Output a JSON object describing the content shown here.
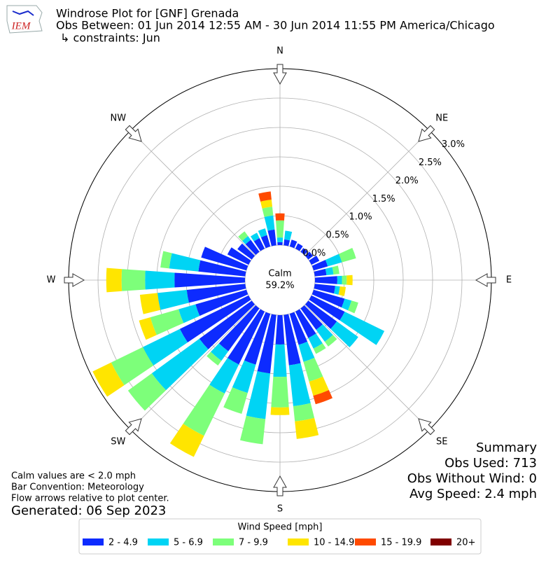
{
  "chart_data": {
    "type": "windrose",
    "title": "Windrose Plot for [GNF] Grenada",
    "subtitle": "Obs Between: 01 Jun 2014 12:55 AM - 30 Jun 2014 11:55 PM America/Chicago",
    "constraints": "↳ constraints: Jun",
    "logo_text": "IEM",
    "calm_label": "Calm",
    "calm_text": "59.2%",
    "x": [
      0,
      10,
      20,
      30,
      40,
      50,
      60,
      70,
      80,
      90,
      100,
      110,
      120,
      130,
      140,
      150,
      160,
      170,
      180,
      190,
      200,
      210,
      220,
      230,
      240,
      250,
      260,
      270,
      280,
      290,
      300,
      310,
      320,
      330,
      340,
      350
    ],
    "xticks": [
      {
        "value": 0,
        "label": "N"
      },
      {
        "value": 45,
        "label": "NE"
      },
      {
        "value": 90,
        "label": "E"
      },
      {
        "value": 135,
        "label": "SE"
      },
      {
        "value": 180,
        "label": "S"
      },
      {
        "value": 225,
        "label": "SW"
      },
      {
        "value": 270,
        "label": "W"
      },
      {
        "value": 315,
        "label": "NW"
      }
    ],
    "ylim": [
      0,
      3.0
    ],
    "yticks": [
      {
        "value": 0,
        "label": "0.0%"
      },
      {
        "value": 0.5,
        "label": "0.5%"
      },
      {
        "value": 1.0,
        "label": "1.0%"
      },
      {
        "value": 1.5,
        "label": "1.5%"
      },
      {
        "value": 2.0,
        "label": "2.0%"
      },
      {
        "value": 2.5,
        "label": "2.5%"
      },
      {
        "value": 3.0,
        "label": "3.0%"
      }
    ],
    "grid": true,
    "legend_title": "Wind Speed [mph]",
    "series": [
      {
        "name": "2 - 4.9",
        "color": "#0d2bff",
        "values": [
          0.05,
          0.1,
          0.12,
          0.1,
          0.08,
          0.1,
          0.15,
          0.25,
          0.2,
          0.38,
          0.35,
          0.55,
          0.63,
          0.6,
          0.45,
          0.5,
          0.55,
          0.86,
          0.5,
          1.0,
          0.9,
          1.0,
          0.9,
          1.1,
          1.3,
          0.9,
          1.0,
          1.2,
          0.8,
          0.8,
          0.4,
          0.3,
          0.25,
          0.2,
          0.2,
          0.27
        ]
      },
      {
        "name": "5 - 6.9",
        "color": "#00d4f4",
        "values": [
          0.08,
          0.15,
          0,
          0,
          0,
          0,
          0,
          0.25,
          0.12,
          0.08,
          0.08,
          0.12,
          0.75,
          0.45,
          0.25,
          0.2,
          0.3,
          0.7,
          0.55,
          0.78,
          0.5,
          0.55,
          0.2,
          1.0,
          0.7,
          0.3,
          0.5,
          0.5,
          0.5,
          0,
          0,
          0,
          0.08,
          0.1,
          0.12,
          0.24
        ]
      },
      {
        "name": "7 - 9.9",
        "color": "#7dff7a",
        "values": [
          0.29,
          0,
          0,
          0,
          0,
          0,
          0,
          0.25,
          0.1,
          0.08,
          0,
          0.12,
          0,
          0,
          0.1,
          0.1,
          0.35,
          0.26,
          0.52,
          0.43,
          0.37,
          0.8,
          0.1,
          0.5,
          0.6,
          0.5,
          0,
          0.4,
          0.15,
          0,
          0,
          0,
          0.1,
          0,
          0,
          0.15
        ]
      },
      {
        "name": "10 - 14.9",
        "color": "#ffe500",
        "values": [
          0,
          0,
          0,
          0,
          0,
          0,
          0,
          0,
          0,
          0.1,
          0.1,
          0,
          0,
          0,
          0,
          0,
          0.25,
          0.3,
          0.13,
          0,
          0,
          0.4,
          0,
          0,
          0.35,
          0.2,
          0.3,
          0.26,
          0,
          0,
          0,
          0,
          0,
          0,
          0,
          0.12
        ]
      },
      {
        "name": "15 - 19.9",
        "color": "#ff4a00",
        "values": [
          0.12,
          0,
          0,
          0,
          0,
          0,
          0,
          0,
          0,
          0,
          0,
          0,
          0,
          0,
          0,
          0,
          0.15,
          0,
          0,
          0,
          0,
          0,
          0,
          0,
          0,
          0,
          0,
          0,
          0,
          0,
          0,
          0,
          0,
          0,
          0,
          0.14
        ]
      },
      {
        "name": "20+",
        "color": "#800000",
        "values": [
          0,
          0,
          0,
          0,
          0,
          0,
          0,
          0,
          0,
          0,
          0,
          0,
          0,
          0,
          0,
          0,
          0,
          0,
          0,
          0,
          0,
          0,
          0,
          0,
          0,
          0,
          0,
          0,
          0,
          0,
          0,
          0,
          0,
          0,
          0,
          0
        ]
      }
    ],
    "notes": [
      "Calm values are < 2.0 mph",
      "Bar Convention: Meteorology",
      "Flow arrows relative to plot center."
    ],
    "generated": "Generated: 06 Sep 2023",
    "summary": [
      "Summary",
      "Obs Used: 713",
      "Obs Without Wind: 0",
      "Avg Speed: 2.4 mph"
    ]
  }
}
